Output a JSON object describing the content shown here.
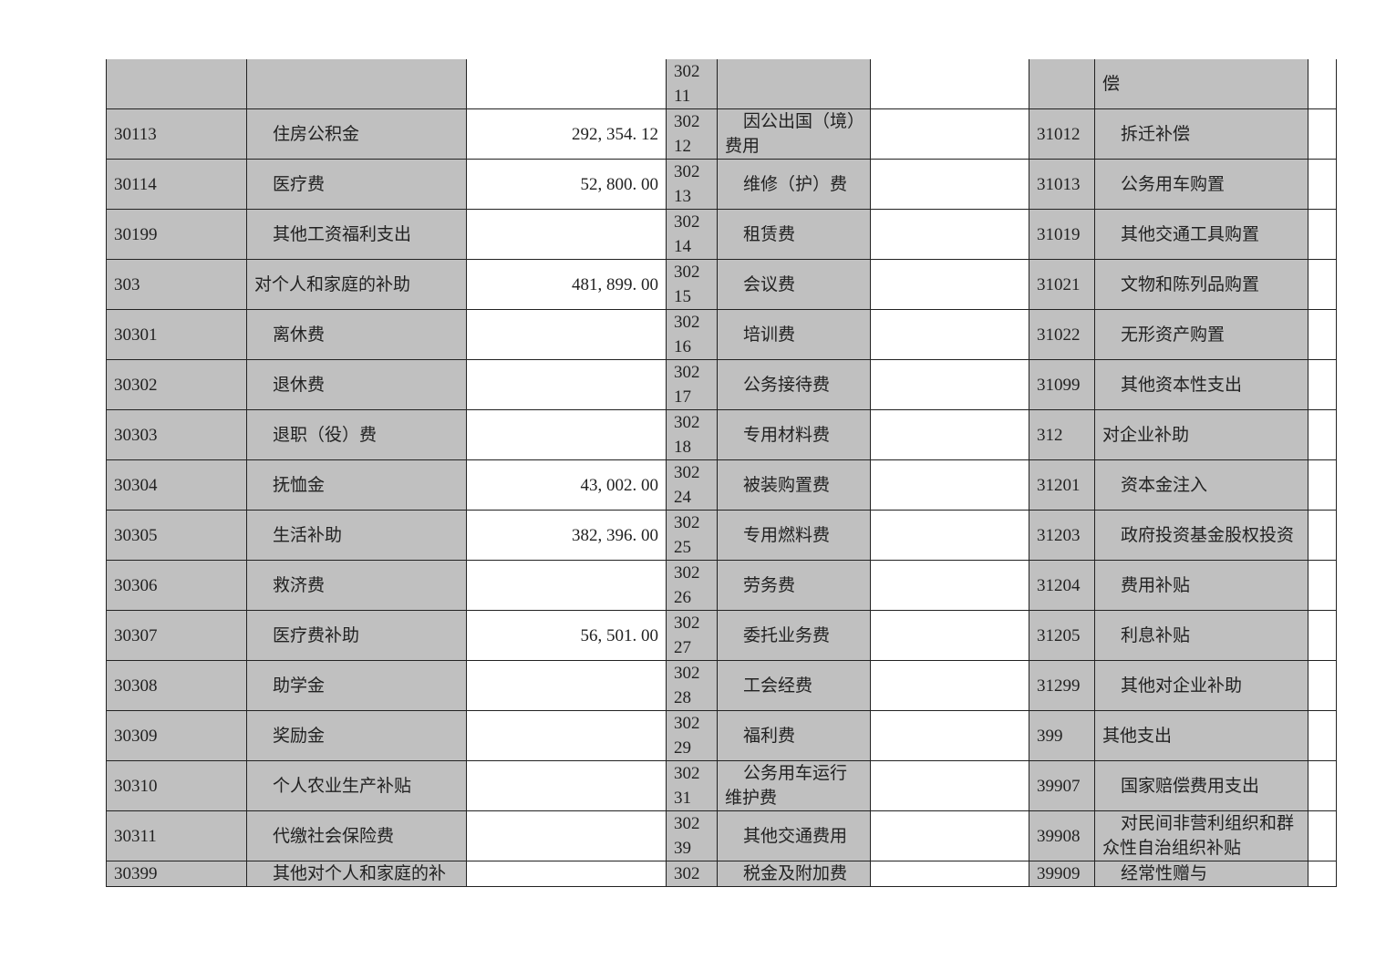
{
  "rows": [
    {
      "c1": "",
      "n1": "",
      "a1": "",
      "c2": "30211",
      "n2": "",
      "a2": "",
      "c3": "",
      "n3": "偿",
      "a3": "",
      "i1": false,
      "i2": false,
      "i3": false
    },
    {
      "c1": "30113",
      "n1": "住房公积金",
      "a1": "292, 354. 12",
      "c2": "30212",
      "n2": "因公出国（境）费用",
      "a2": "",
      "c3": "31012",
      "n3": "拆迁补偿",
      "a3": "",
      "i1": true,
      "i2": true,
      "i3": true
    },
    {
      "c1": "30114",
      "n1": "医疗费",
      "a1": "52, 800. 00",
      "c2": "30213",
      "n2": "维修（护）费",
      "a2": "",
      "c3": "31013",
      "n3": "公务用车购置",
      "a3": "",
      "i1": true,
      "i2": true,
      "i3": true
    },
    {
      "c1": "30199",
      "n1": "其他工资福利支出",
      "a1": "",
      "c2": "30214",
      "n2": "租赁费",
      "a2": "",
      "c3": "31019",
      "n3": "其他交通工具购置",
      "a3": "",
      "i1": true,
      "i2": true,
      "i3": true
    },
    {
      "c1": "303",
      "n1": "对个人和家庭的补助",
      "a1": "481, 899. 00",
      "c2": "30215",
      "n2": "会议费",
      "a2": "",
      "c3": "31021",
      "n3": "文物和陈列品购置",
      "a3": "",
      "i1": false,
      "i2": true,
      "i3": true
    },
    {
      "c1": "30301",
      "n1": "离休费",
      "a1": "",
      "c2": "30216",
      "n2": "培训费",
      "a2": "",
      "c3": "31022",
      "n3": "无形资产购置",
      "a3": "",
      "i1": true,
      "i2": true,
      "i3": true
    },
    {
      "c1": "30302",
      "n1": "退休费",
      "a1": "",
      "c2": "30217",
      "n2": "公务接待费",
      "a2": "",
      "c3": "31099",
      "n3": "其他资本性支出",
      "a3": "",
      "i1": true,
      "i2": true,
      "i3": true
    },
    {
      "c1": "30303",
      "n1": "退职（役）费",
      "a1": "",
      "c2": "30218",
      "n2": "专用材料费",
      "a2": "",
      "c3": "312",
      "n3": "对企业补助",
      "a3": "",
      "i1": true,
      "i2": true,
      "i3": false
    },
    {
      "c1": "30304",
      "n1": "抚恤金",
      "a1": "43, 002. 00",
      "c2": "30224",
      "n2": "被装购置费",
      "a2": "",
      "c3": "31201",
      "n3": "资本金注入",
      "a3": "",
      "i1": true,
      "i2": true,
      "i3": true
    },
    {
      "c1": "30305",
      "n1": "生活补助",
      "a1": "382, 396. 00",
      "c2": "30225",
      "n2": "专用燃料费",
      "a2": "",
      "c3": "31203",
      "n3": "政府投资基金股权投资",
      "a3": "",
      "i1": true,
      "i2": true,
      "i3": true
    },
    {
      "c1": "30306",
      "n1": "救济费",
      "a1": "",
      "c2": "30226",
      "n2": "劳务费",
      "a2": "",
      "c3": "31204",
      "n3": "费用补贴",
      "a3": "",
      "i1": true,
      "i2": true,
      "i3": true
    },
    {
      "c1": "30307",
      "n1": "医疗费补助",
      "a1": "56, 501. 00",
      "c2": "30227",
      "n2": "委托业务费",
      "a2": "",
      "c3": "31205",
      "n3": "利息补贴",
      "a3": "",
      "i1": true,
      "i2": true,
      "i3": true
    },
    {
      "c1": "30308",
      "n1": "助学金",
      "a1": "",
      "c2": "30228",
      "n2": "工会经费",
      "a2": "",
      "c3": "31299",
      "n3": "其他对企业补助",
      "a3": "",
      "i1": true,
      "i2": true,
      "i3": true
    },
    {
      "c1": "30309",
      "n1": "奖励金",
      "a1": "",
      "c2": "30229",
      "n2": "福利费",
      "a2": "",
      "c3": "399",
      "n3": "其他支出",
      "a3": "",
      "i1": true,
      "i2": true,
      "i3": false
    },
    {
      "c1": "30310",
      "n1": "个人农业生产补贴",
      "a1": "",
      "c2": "30231",
      "n2": "公务用车运行维护费",
      "a2": "",
      "c3": "39907",
      "n3": "国家赔偿费用支出",
      "a3": "",
      "i1": true,
      "i2": true,
      "i3": true
    },
    {
      "c1": "30311",
      "n1": "代缴社会保险费",
      "a1": "",
      "c2": "30239",
      "n2": "其他交通费用",
      "a2": "",
      "c3": "39908",
      "n3": "对民间非营利组织和群众性自治组织补贴",
      "a3": "",
      "i1": true,
      "i2": true,
      "i3": true
    },
    {
      "c1": "30399",
      "n1": "其他对个人和家庭的补",
      "a1": "",
      "c2": "302",
      "n2": "税金及附加费",
      "a2": "",
      "c3": "39909",
      "n3": "经常性赠与",
      "a3": "",
      "i1": true,
      "i2": true,
      "i3": true
    }
  ]
}
